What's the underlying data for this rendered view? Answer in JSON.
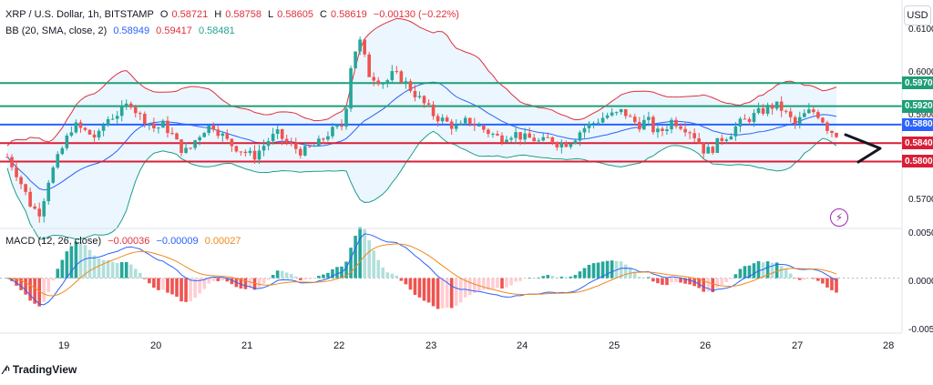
{
  "header": {
    "symbol": "XRP / U.S. Dollar, 1h, BITSTAMP",
    "ohlc": [
      {
        "k": "O",
        "v": "0.58721"
      },
      {
        "k": "H",
        "v": "0.58758"
      },
      {
        "k": "L",
        "v": "0.58605"
      },
      {
        "k": "C",
        "v": "0.58619"
      }
    ],
    "change": "−0.00130 (−0.22%)",
    "bb_label": "BB (20, SMA, close, 2)",
    "bb_values": [
      "0.58949",
      "0.59417",
      "0.58481"
    ],
    "macd_label": "MACD (12, 26, close)",
    "macd_values": [
      "−0.00036",
      "−0.00009",
      "0.00027"
    ]
  },
  "currency": "USD",
  "watermark": "TradingView",
  "colors": {
    "up": "#26a69a",
    "down": "#ef5350",
    "bb_upper": "#e0303b",
    "bb_basis": "#2962ff",
    "bb_lower": "#1f9e87",
    "bb_fill": "#e3f2fd",
    "macd": "#2962ff",
    "signal": "#f0891a",
    "level_green": "#1e9e77",
    "level_blue": "#2962ff",
    "level_red": "#d91e36"
  },
  "price_axis": [
    "0.6100",
    "0.6000",
    "0.5900",
    "0.5700"
  ],
  "macd_axis": [
    "0.0050",
    "0.0000",
    "-0.0050"
  ],
  "price_labels": [
    {
      "text": "0.5970",
      "value": 0.597,
      "color": "#1e9e77"
    },
    {
      "text": "0.5920",
      "value": 0.592,
      "color": "#1e9e77"
    },
    {
      "text": "0.5880",
      "value": 0.588,
      "color": "#2962ff"
    },
    {
      "text": "0.5840",
      "value": 0.584,
      "color": "#d91e36"
    },
    {
      "text": "0.5800",
      "value": 0.58,
      "color": "#d91e36"
    }
  ],
  "chart_data": {
    "type": "candlestick",
    "x_ticks": [
      "19",
      "20",
      "21",
      "22",
      "23",
      "24",
      "25",
      "26",
      "27",
      "28"
    ],
    "price_ylim": [
      0.5655,
      0.615
    ],
    "macd_ylim": [
      -0.0062,
      0.0056
    ],
    "levels": [
      0.597,
      0.592,
      0.588,
      0.584,
      0.58
    ],
    "close_path": [
      0.581,
      0.578,
      0.574,
      0.57,
      0.569,
      0.576,
      0.58,
      0.584,
      0.588,
      0.587,
      0.586,
      0.585,
      0.589,
      0.59,
      0.591,
      0.593,
      0.59,
      0.589,
      0.587,
      0.588,
      0.586,
      0.583,
      0.582,
      0.585,
      0.587,
      0.588,
      0.586,
      0.584,
      0.583,
      0.582,
      0.581,
      0.583,
      0.585,
      0.586,
      0.584,
      0.583,
      0.582,
      0.583,
      0.584,
      0.586,
      0.587,
      0.588,
      0.603,
      0.606,
      0.599,
      0.598,
      0.597,
      0.599,
      0.598,
      0.596,
      0.594,
      0.592,
      0.59,
      0.589,
      0.588,
      0.587,
      0.589,
      0.588,
      0.587,
      0.586,
      0.585,
      0.586,
      0.586,
      0.585,
      0.585,
      0.584,
      0.585,
      0.584,
      0.584,
      0.585,
      0.587,
      0.588,
      0.589,
      0.59,
      0.59,
      0.591,
      0.589,
      0.588,
      0.589,
      0.586,
      0.587,
      0.589,
      0.588,
      0.587,
      0.585,
      0.582,
      0.583,
      0.585,
      0.586,
      0.588,
      0.589,
      0.59,
      0.591,
      0.592,
      0.592,
      0.59,
      0.588,
      0.59,
      0.591,
      0.59,
      0.587,
      0.586
    ],
    "macd_bounds": [
      -0.0035,
      0.0045
    ]
  }
}
